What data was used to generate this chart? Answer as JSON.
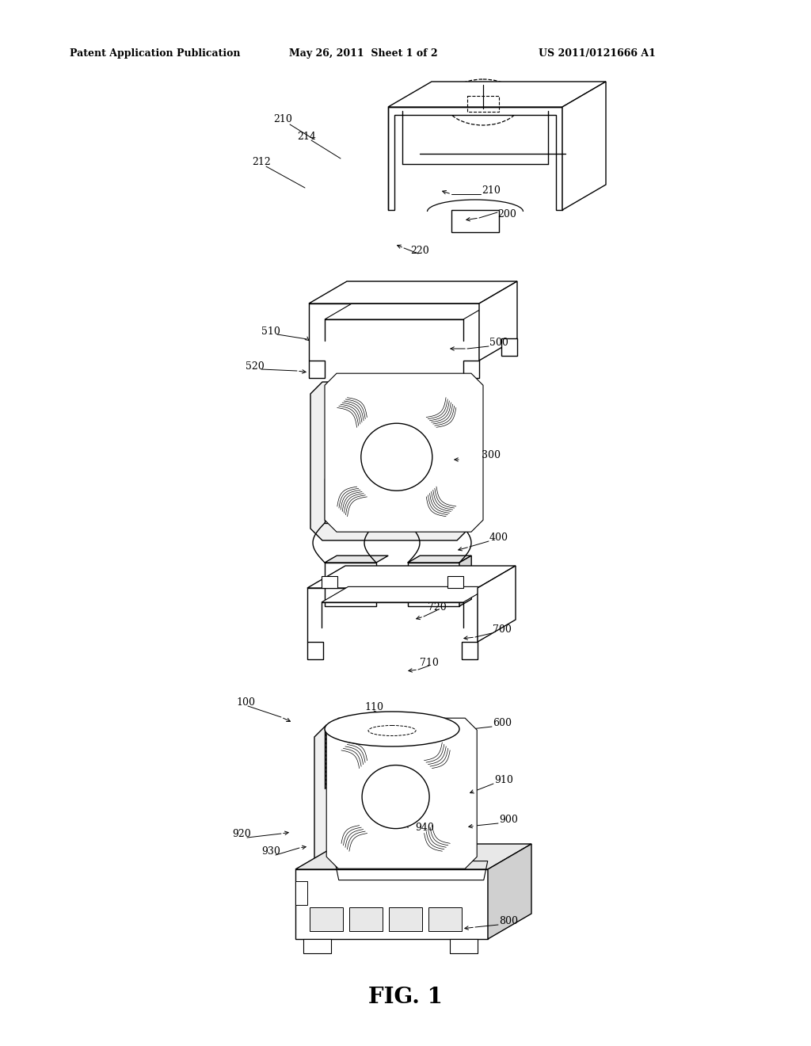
{
  "bg_color": "#ffffff",
  "header_left": "Patent Application Publication",
  "header_center": "May 26, 2011  Sheet 1 of 2",
  "header_right": "US 2011/0121666 A1",
  "figure_label": "FIG. 1",
  "lw": 1.0
}
